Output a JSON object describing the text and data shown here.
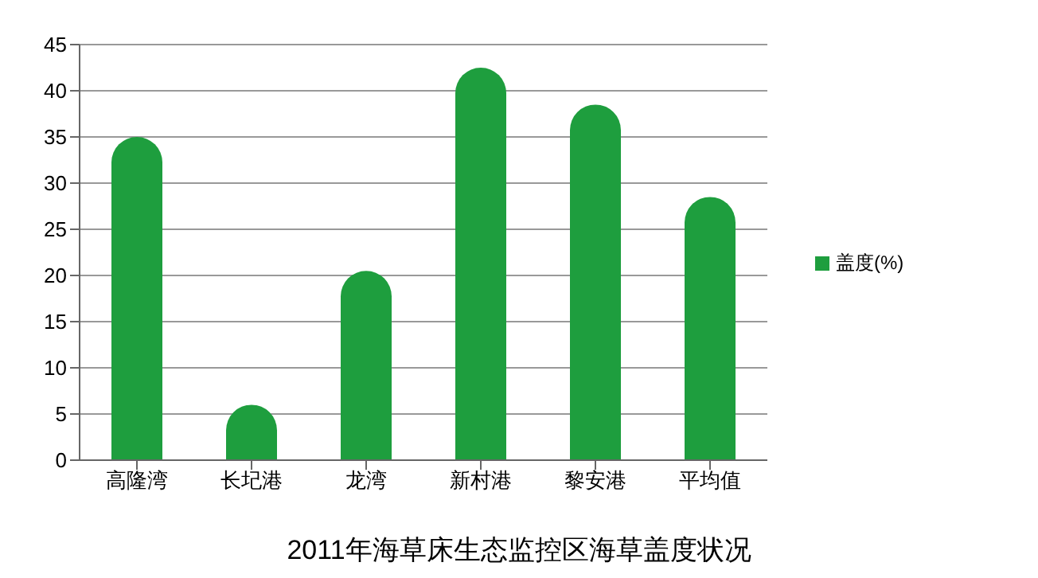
{
  "chart_data": {
    "type": "bar",
    "title": "2011年海草床生态监控区海草盖度状况",
    "categories": [
      "高隆湾",
      "长圮港",
      "龙湾",
      "新村港",
      "黎安港",
      "平均值"
    ],
    "series": [
      {
        "name": "盖度(%)",
        "color": "#1e9e3e",
        "values": [
          35,
          6,
          20.5,
          42.5,
          38.5,
          28.5
        ]
      }
    ],
    "ylim": [
      0,
      45
    ],
    "yticks": [
      0,
      5,
      10,
      15,
      20,
      25,
      30,
      35,
      40,
      45
    ],
    "grid": "y",
    "legend": "right"
  }
}
